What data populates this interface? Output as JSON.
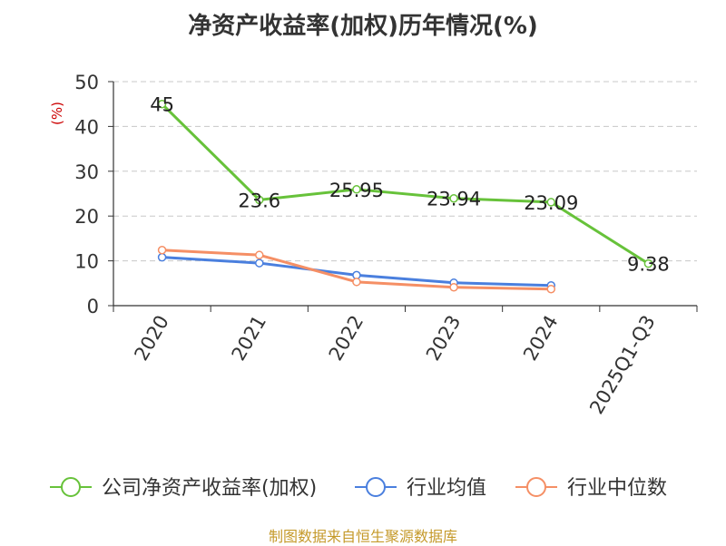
{
  "chart_data": {
    "type": "line",
    "title": "净资产收益率(加权)历年情况(%)",
    "ylabel": "(%)",
    "xlabel": "",
    "categories": [
      "2020",
      "2021",
      "2022",
      "2023",
      "2024",
      "2025Q1-Q3"
    ],
    "ylim": [
      0,
      50
    ],
    "yticks": [
      0,
      10,
      20,
      30,
      40,
      50
    ],
    "grid": true,
    "legend_position": "bottom",
    "series": [
      {
        "name": "公司净资产收益率(加权)",
        "color": "#67c23a",
        "values": [
          45,
          23.6,
          25.95,
          23.94,
          23.09,
          9.38
        ],
        "labels": [
          "45",
          "23.6",
          "25.95",
          "23.94",
          "23.09",
          "9.38"
        ]
      },
      {
        "name": "行业均值",
        "color": "#4a7fde",
        "values": [
          10.8,
          9.5,
          6.8,
          5.1,
          4.5,
          null
        ]
      },
      {
        "name": "行业中位数",
        "color": "#f58f65",
        "values": [
          12.4,
          11.3,
          5.3,
          4.1,
          3.7,
          null
        ]
      }
    ]
  },
  "footer": {
    "source": "制图数据来自恒生聚源数据库"
  }
}
